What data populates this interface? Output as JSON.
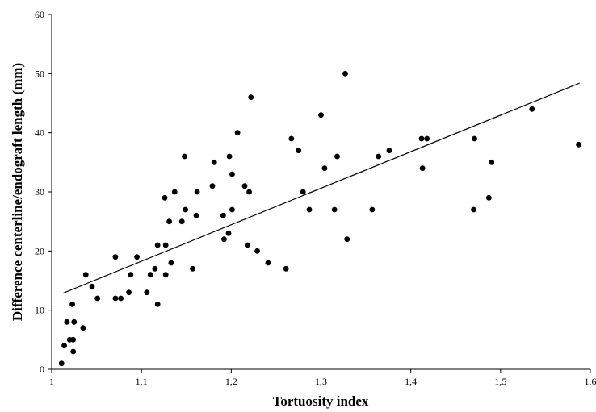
{
  "chart_data": {
    "type": "scatter",
    "title": "",
    "xlabel": "Tortuosity index",
    "ylabel": "Difference centerline/endograft length (mm)",
    "xlim": [
      1,
      1.6
    ],
    "ylim": [
      0,
      60
    ],
    "x_ticks": [
      "1",
      "1,1",
      "1,2",
      "1,3",
      "1,4",
      "1,5",
      "1,6"
    ],
    "y_ticks": [
      "0",
      "10",
      "20",
      "30",
      "40",
      "50",
      "60"
    ],
    "grid": false,
    "legend": "none",
    "marker_color": "#000000",
    "trendline": {
      "x": [
        1.013,
        1.588
      ],
      "y": [
        12.9,
        48.4
      ]
    },
    "series": [
      {
        "points": [
          [
            1.011,
            1
          ],
          [
            1.014,
            4
          ],
          [
            1.017,
            8
          ],
          [
            1.02,
            5
          ],
          [
            1.024,
            3
          ],
          [
            1.024,
            5
          ],
          [
            1.023,
            11
          ],
          [
            1.025,
            8
          ],
          [
            1.035,
            7
          ],
          [
            1.038,
            16
          ],
          [
            1.045,
            14
          ],
          [
            1.051,
            12
          ],
          [
            1.071,
            12
          ],
          [
            1.071,
            19
          ],
          [
            1.077,
            12
          ],
          [
            1.086,
            13
          ],
          [
            1.088,
            16
          ],
          [
            1.095,
            19
          ],
          [
            1.106,
            13
          ],
          [
            1.11,
            16
          ],
          [
            1.115,
            17
          ],
          [
            1.118,
            21
          ],
          [
            1.118,
            11
          ],
          [
            1.126,
            29
          ],
          [
            1.127,
            16
          ],
          [
            1.127,
            21
          ],
          [
            1.131,
            25
          ],
          [
            1.133,
            18
          ],
          [
            1.137,
            30
          ],
          [
            1.145,
            25
          ],
          [
            1.148,
            36
          ],
          [
            1.149,
            27
          ],
          [
            1.157,
            17
          ],
          [
            1.161,
            26
          ],
          [
            1.162,
            30
          ],
          [
            1.179,
            31
          ],
          [
            1.181,
            35
          ],
          [
            1.191,
            26
          ],
          [
            1.192,
            22
          ],
          [
            1.197,
            23
          ],
          [
            1.198,
            36
          ],
          [
            1.201,
            33
          ],
          [
            1.201,
            27
          ],
          [
            1.207,
            40
          ],
          [
            1.215,
            31
          ],
          [
            1.218,
            21
          ],
          [
            1.22,
            30
          ],
          [
            1.222,
            46
          ],
          [
            1.229,
            20
          ],
          [
            1.241,
            18
          ],
          [
            1.261,
            17
          ],
          [
            1.267,
            39
          ],
          [
            1.275,
            37
          ],
          [
            1.28,
            30
          ],
          [
            1.287,
            27
          ],
          [
            1.3,
            43
          ],
          [
            1.304,
            34
          ],
          [
            1.315,
            27
          ],
          [
            1.318,
            36
          ],
          [
            1.327,
            50
          ],
          [
            1.329,
            22
          ],
          [
            1.357,
            27
          ],
          [
            1.364,
            36
          ],
          [
            1.376,
            37
          ],
          [
            1.412,
            39
          ],
          [
            1.413,
            34
          ],
          [
            1.418,
            39
          ],
          [
            1.47,
            27
          ],
          [
            1.471,
            39
          ],
          [
            1.487,
            29
          ],
          [
            1.49,
            35
          ],
          [
            1.535,
            44
          ],
          [
            1.587,
            38
          ]
        ]
      }
    ]
  }
}
